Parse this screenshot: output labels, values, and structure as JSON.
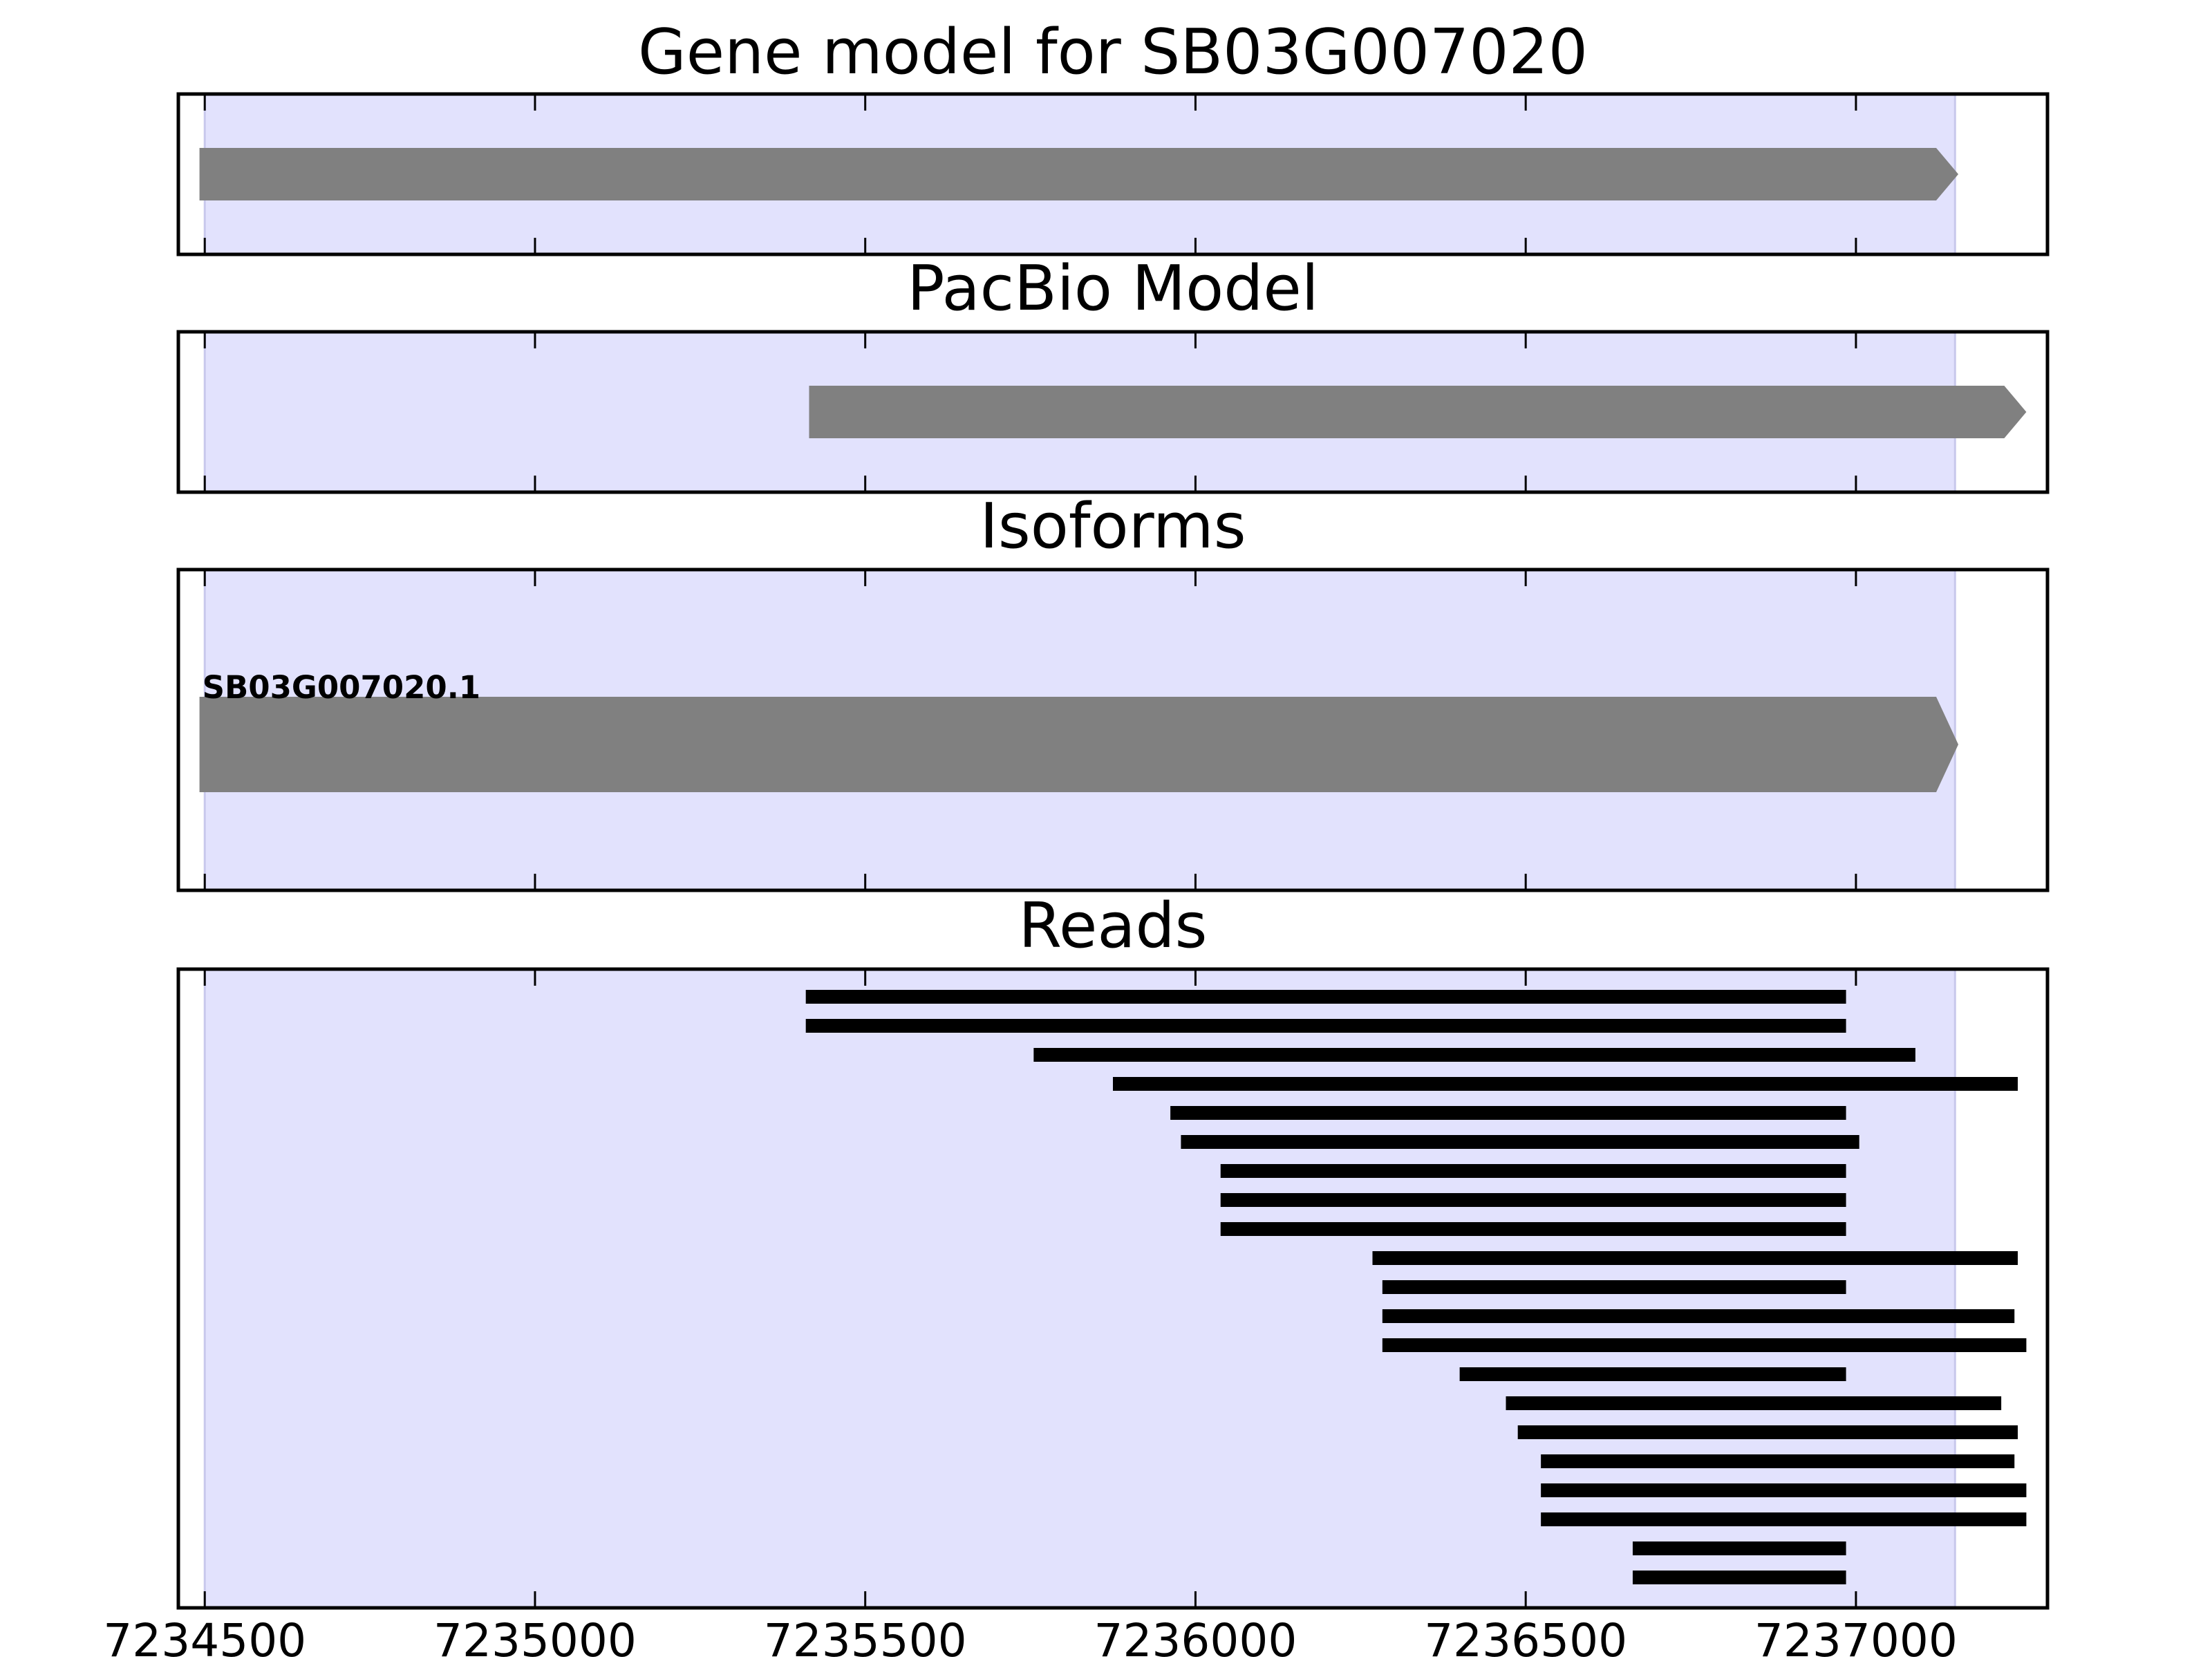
{
  "chart_data": {
    "type": "gene-track",
    "title": "Gene model for SB03G007020",
    "xlim": [
      7234460,
      7237290
    ],
    "xticks": [
      7234500,
      7235000,
      7235500,
      7236000,
      7236500,
      7237000
    ],
    "xtick_labels": [
      "7234500",
      "7235000",
      "7235500",
      "7236000",
      "7236500",
      "7237000"
    ],
    "grid": false,
    "highlight_region": {
      "start": 7234500,
      "end": 7237150,
      "color": "#e2e2fd"
    },
    "feature_color": "#808080",
    "read_color": "#000000",
    "panels": [
      {
        "key": "gene",
        "title": "Gene model for SB03G007020",
        "features": [
          {
            "start": 7234492,
            "end": 7237155,
            "strand": "+"
          }
        ]
      },
      {
        "key": "pacbio",
        "title": "PacBio Model",
        "features": [
          {
            "start": 7235415,
            "end": 7237258,
            "strand": "+"
          }
        ]
      },
      {
        "key": "isoforms",
        "title": "Isoforms",
        "features": [
          {
            "start": 7234492,
            "end": 7237155,
            "strand": "+",
            "label": "SB03G007020.1"
          }
        ]
      },
      {
        "key": "reads",
        "title": "Reads",
        "reads": [
          {
            "start": 7235410,
            "end": 7236985
          },
          {
            "start": 7235410,
            "end": 7236985
          },
          {
            "start": 7235755,
            "end": 7237090
          },
          {
            "start": 7235875,
            "end": 7237245
          },
          {
            "start": 7235962,
            "end": 7236985
          },
          {
            "start": 7235978,
            "end": 7237005
          },
          {
            "start": 7236038,
            "end": 7236985
          },
          {
            "start": 7236038,
            "end": 7236985
          },
          {
            "start": 7236038,
            "end": 7236985
          },
          {
            "start": 7236268,
            "end": 7237245
          },
          {
            "start": 7236283,
            "end": 7236985
          },
          {
            "start": 7236283,
            "end": 7237240
          },
          {
            "start": 7236283,
            "end": 7237258
          },
          {
            "start": 7236400,
            "end": 7236985
          },
          {
            "start": 7236470,
            "end": 7237220
          },
          {
            "start": 7236488,
            "end": 7237245
          },
          {
            "start": 7236523,
            "end": 7237240
          },
          {
            "start": 7236523,
            "end": 7237258
          },
          {
            "start": 7236523,
            "end": 7237258
          },
          {
            "start": 7236662,
            "end": 7236985
          },
          {
            "start": 7236662,
            "end": 7236985
          }
        ]
      }
    ]
  }
}
